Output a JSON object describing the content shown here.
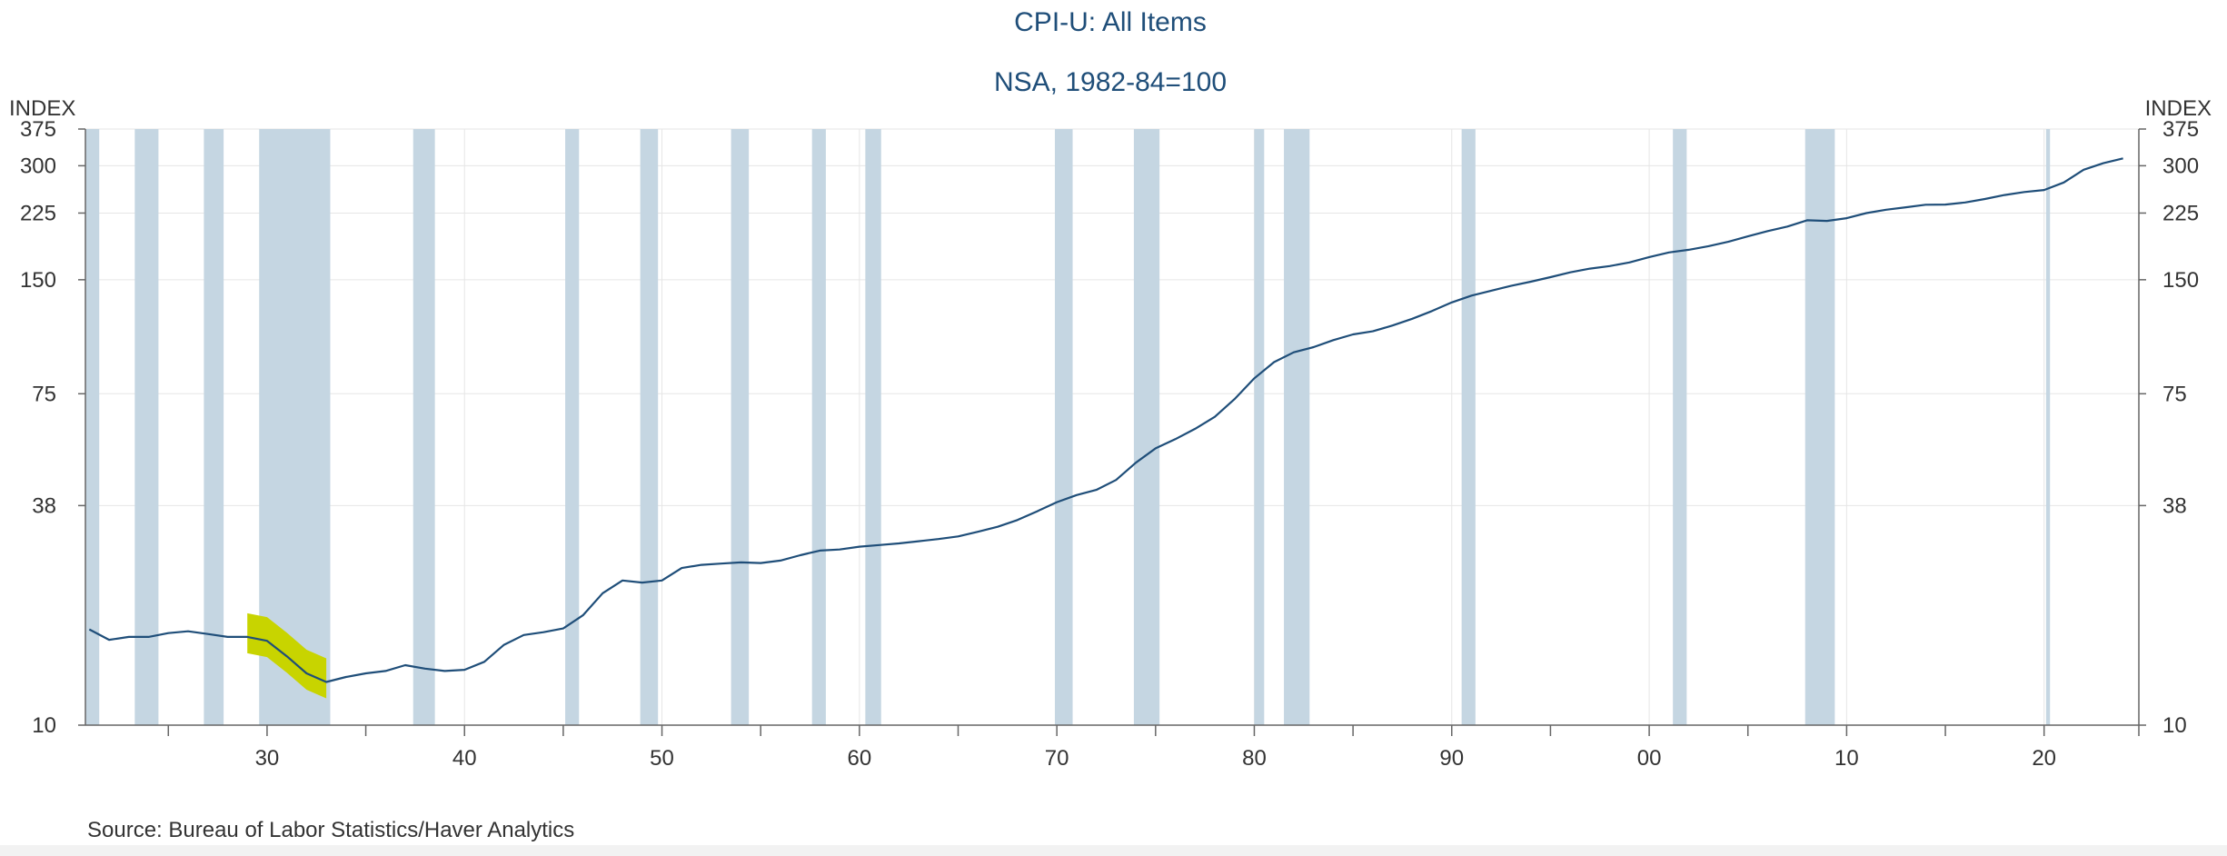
{
  "title": "CPI-U: All Items",
  "subtitle": "NSA, 1982-84=100",
  "source": "Source:  Bureau of Labor Statistics/Haver Analytics",
  "colors": {
    "line": "#1f4e79",
    "recession": "#c5d6e2",
    "highlight": "#c8d400",
    "grid": "#e6e6e6",
    "text": "#1f4e79"
  },
  "chart_data": {
    "type": "line",
    "title": "CPI-U: All Items",
    "subtitle": "NSA, 1982-84=100",
    "ylabel_left": "INDEX",
    "ylabel_right": "INDEX",
    "scale": "log",
    "ylim": [
      10,
      375
    ],
    "y_ticks": [
      10,
      38,
      75,
      150,
      225,
      300,
      375
    ],
    "y_tick_labels": [
      "10",
      "38",
      "75",
      "150",
      "225",
      "300",
      "375"
    ],
    "xlim": [
      1920.8,
      2024.8
    ],
    "x_ticks": [
      1930,
      1940,
      1950,
      1960,
      1970,
      1980,
      1990,
      2000,
      2010,
      2020
    ],
    "x_tick_labels": [
      "30",
      "40",
      "50",
      "60",
      "70",
      "80",
      "90",
      "00",
      "10",
      "20"
    ],
    "x_minor_ticks": [
      1925,
      1935,
      1945,
      1955,
      1965,
      1975,
      1985,
      1995,
      2005,
      2015,
      2025
    ],
    "grid": true,
    "highlight": {
      "from": 1929.3,
      "to": 1933.0,
      "label": ""
    },
    "recessions": [
      [
        1920.0,
        1921.5
      ],
      [
        1923.3,
        1924.5
      ],
      [
        1926.8,
        1927.8
      ],
      [
        1929.6,
        1933.2
      ],
      [
        1937.4,
        1938.5
      ],
      [
        1945.1,
        1945.8
      ],
      [
        1948.9,
        1949.8
      ],
      [
        1953.5,
        1954.4
      ],
      [
        1957.6,
        1958.3
      ],
      [
        1960.3,
        1961.1
      ],
      [
        1969.9,
        1970.8
      ],
      [
        1973.9,
        1975.2
      ],
      [
        1980.0,
        1980.5
      ],
      [
        1981.5,
        1982.8
      ],
      [
        1990.5,
        1991.2
      ],
      [
        2001.2,
        2001.9
      ],
      [
        2007.9,
        2009.4
      ],
      [
        2020.1,
        2020.3
      ]
    ],
    "series": [
      {
        "name": "CPI-U: All Items",
        "x": [
          1921,
          1922,
          1923,
          1924,
          1925,
          1926,
          1927,
          1928,
          1929,
          1930,
          1931,
          1932,
          1933,
          1934,
          1935,
          1936,
          1937,
          1938,
          1939,
          1940,
          1941,
          1942,
          1943,
          1944,
          1945,
          1946,
          1947,
          1948,
          1949,
          1950,
          1951,
          1952,
          1953,
          1954,
          1955,
          1956,
          1957,
          1958,
          1959,
          1960,
          1961,
          1962,
          1963,
          1964,
          1965,
          1966,
          1967,
          1968,
          1969,
          1970,
          1971,
          1972,
          1973,
          1974,
          1975,
          1976,
          1977,
          1978,
          1979,
          1980,
          1981,
          1982,
          1983,
          1984,
          1985,
          1986,
          1987,
          1988,
          1989,
          1990,
          1991,
          1992,
          1993,
          1994,
          1995,
          1996,
          1997,
          1998,
          1999,
          2000,
          2001,
          2002,
          2003,
          2004,
          2005,
          2006,
          2007,
          2008,
          2009,
          2010,
          2011,
          2012,
          2013,
          2014,
          2015,
          2016,
          2017,
          2018,
          2019,
          2020,
          2021,
          2022,
          2023,
          2024
        ],
        "values": [
          17.9,
          16.8,
          17.1,
          17.1,
          17.5,
          17.7,
          17.4,
          17.1,
          17.1,
          16.7,
          15.2,
          13.7,
          13.0,
          13.4,
          13.7,
          13.9,
          14.4,
          14.1,
          13.9,
          14.0,
          14.7,
          16.3,
          17.3,
          17.6,
          18.0,
          19.5,
          22.3,
          24.1,
          23.8,
          24.1,
          26.0,
          26.5,
          26.7,
          26.9,
          26.8,
          27.2,
          28.1,
          28.9,
          29.1,
          29.6,
          29.9,
          30.2,
          30.6,
          31.0,
          31.5,
          32.4,
          33.4,
          34.8,
          36.7,
          38.8,
          40.5,
          41.8,
          44.4,
          49.3,
          53.8,
          56.9,
          60.6,
          65.2,
          72.6,
          82.4,
          90.9,
          96.5,
          99.6,
          103.9,
          107.6,
          109.6,
          113.6,
          118.3,
          124.0,
          130.7,
          136.2,
          140.3,
          144.5,
          148.2,
          152.4,
          156.9,
          160.5,
          163.0,
          166.6,
          172.2,
          177.1,
          179.9,
          184.0,
          188.9,
          195.3,
          201.6,
          207.3,
          215.3,
          214.5,
          218.1,
          224.9,
          229.6,
          233.0,
          236.7,
          237.0,
          240.0,
          245.1,
          251.1,
          255.7,
          258.8,
          271.0,
          292.7,
          304.7,
          313.7
        ]
      }
    ]
  }
}
